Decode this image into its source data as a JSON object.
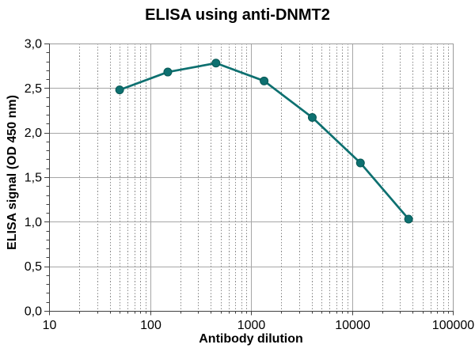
{
  "chart_data": {
    "type": "line",
    "title": "ELISA using anti-DNMT2",
    "xlabel": "Antibody dilution",
    "ylabel": "ELISA signal (OD 450 nm)",
    "x_scale": "log",
    "xlim": [
      10,
      100000
    ],
    "ylim": [
      0,
      3
    ],
    "x": [
      50,
      150,
      450,
      1350,
      4050,
      12150,
      36450
    ],
    "y": [
      2.48,
      2.68,
      2.78,
      2.58,
      2.17,
      1.66,
      1.03
    ],
    "x_tick_labels": [
      "10",
      "100",
      "1000",
      "10000",
      "100000"
    ],
    "y_tick_values": [
      0,
      0.5,
      1,
      1.5,
      2,
      2.5,
      3
    ],
    "y_tick_labels": [
      "0,0",
      "0,5",
      "1,0",
      "1,5",
      "2,0",
      "2,5",
      "3,0"
    ],
    "legend": "none",
    "grid": {
      "horizontal_major": "solid",
      "vertical_major": "solid",
      "vertical_minor": "dotted"
    },
    "marker": "circle"
  },
  "colors": {
    "background": "#ffffff",
    "series": "#0d7070",
    "marker_stroke": "#095956",
    "major_grid": "#a6a6a6",
    "minor_grid": "#8a8a8a",
    "frame": "#9b9b9b",
    "axis": "#3f3f3f",
    "text": "#000000"
  }
}
